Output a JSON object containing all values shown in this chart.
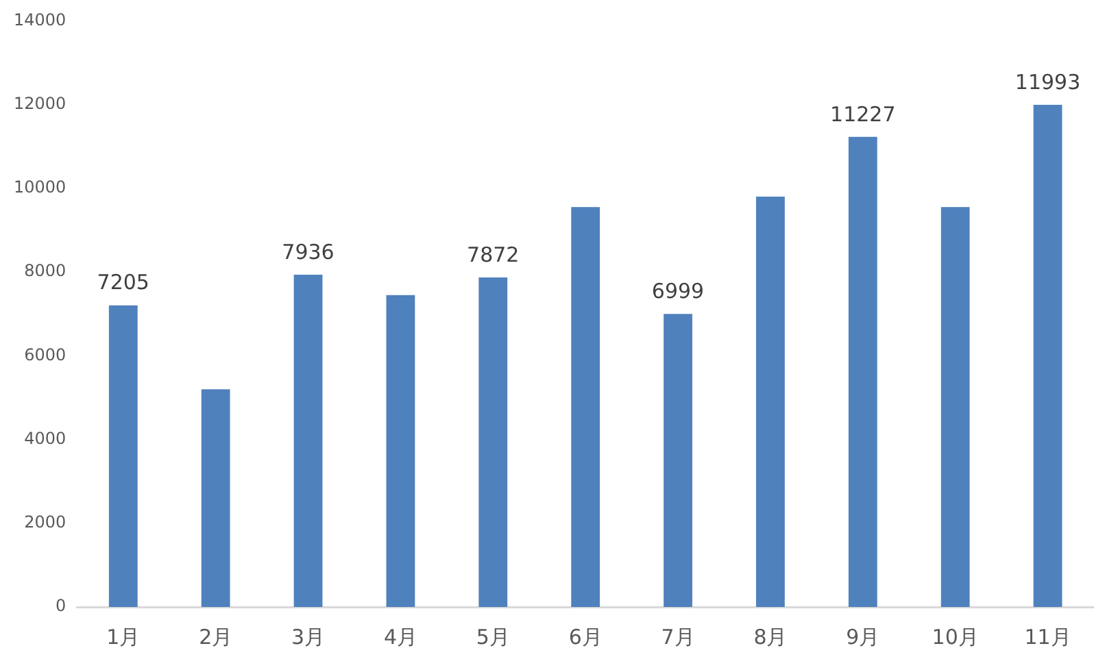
{
  "chart_data": {
    "type": "bar",
    "categories": [
      "1月",
      "2月",
      "3月",
      "4月",
      "5月",
      "6月",
      "7月",
      "8月",
      "9月",
      "10月",
      "11月"
    ],
    "values": [
      7205,
      5200,
      7936,
      7450,
      7872,
      9550,
      6999,
      9800,
      11227,
      9550,
      11993
    ],
    "value_labels": [
      "7205",
      null,
      "7936",
      null,
      "7872",
      null,
      "6999",
      null,
      "11227",
      null,
      "11993"
    ],
    "color": "#4f81bd",
    "ylim": [
      0,
      14000
    ],
    "yticks": [
      0,
      2000,
      4000,
      6000,
      8000,
      10000,
      12000,
      14000
    ]
  }
}
